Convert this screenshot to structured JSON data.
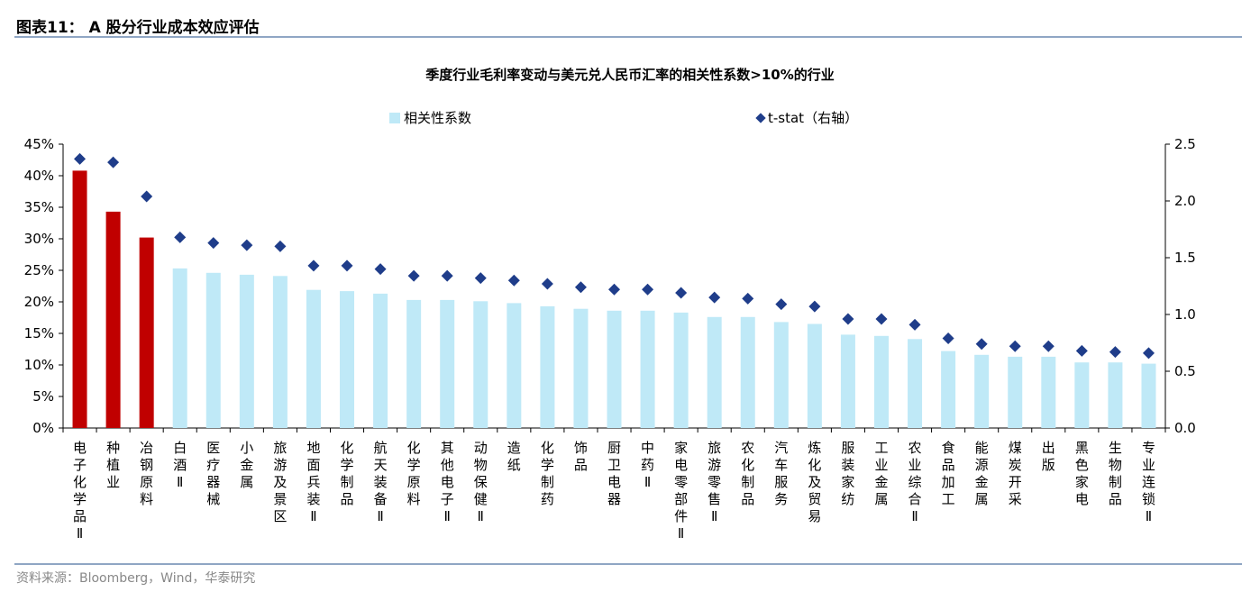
{
  "figure": {
    "title": "图表11： A 股分行业成本效应评估",
    "source": "资料来源：Bloomberg，Wind，华泰研究"
  },
  "colors": {
    "bar_highlight": "#c00000",
    "bar_normal": "#bfe9f7",
    "marker": "#1f3d8a",
    "rule": "#8fa6c4"
  },
  "chart_data": {
    "type": "bar",
    "title": "季度行业毛利率变动与美元兑人民币汇率的相关性系数>10%的行业",
    "legend_position": "top",
    "categories": [
      "电子化学品Ⅱ",
      "种植业",
      "冶钢原料",
      "白酒Ⅱ",
      "医疗器械",
      "小金属",
      "旅游及景区",
      "地面兵装Ⅱ",
      "化学制品",
      "航天装备Ⅱ",
      "化学原料",
      "其他电子Ⅱ",
      "动物保健Ⅱ",
      "造纸",
      "化学制药",
      "饰品",
      "厨卫电器",
      "中药Ⅱ",
      "家电零部件Ⅱ",
      "旅游零售Ⅱ",
      "农化制品",
      "汽车服务",
      "炼化及贸易",
      "服装家纺",
      "工业金属",
      "农业综合Ⅱ",
      "食品加工",
      "能源金属",
      "煤炭开采",
      "出版",
      "黑色家电",
      "生物制品",
      "专业连锁Ⅱ"
    ],
    "series": [
      {
        "name": "相关性系数",
        "axis": "left",
        "values": [
          0.408,
          0.343,
          0.302,
          0.253,
          0.246,
          0.243,
          0.241,
          0.219,
          0.217,
          0.213,
          0.203,
          0.203,
          0.201,
          0.198,
          0.193,
          0.189,
          0.186,
          0.186,
          0.183,
          0.176,
          0.176,
          0.168,
          0.165,
          0.148,
          0.146,
          0.141,
          0.122,
          0.116,
          0.113,
          0.113,
          0.104,
          0.104,
          0.102
        ],
        "highlight_first": 3
      },
      {
        "name": "t-stat（右轴）",
        "axis": "right",
        "values": [
          2.37,
          2.34,
          2.04,
          1.68,
          1.63,
          1.61,
          1.6,
          1.43,
          1.43,
          1.4,
          1.34,
          1.34,
          1.32,
          1.3,
          1.27,
          1.24,
          1.22,
          1.22,
          1.19,
          1.15,
          1.14,
          1.09,
          1.07,
          0.96,
          0.96,
          0.91,
          0.79,
          0.74,
          0.72,
          0.72,
          0.68,
          0.67,
          0.66
        ]
      }
    ],
    "y_left": {
      "min": 0,
      "max": 0.45,
      "ticks": [
        "0%",
        "5%",
        "10%",
        "15%",
        "20%",
        "25%",
        "30%",
        "35%",
        "40%",
        "45%"
      ]
    },
    "y_right": {
      "min": 0,
      "max": 2.5,
      "ticks": [
        "0.0",
        "0.5",
        "1.0",
        "1.5",
        "2.0",
        "2.5"
      ]
    },
    "grid": false
  }
}
